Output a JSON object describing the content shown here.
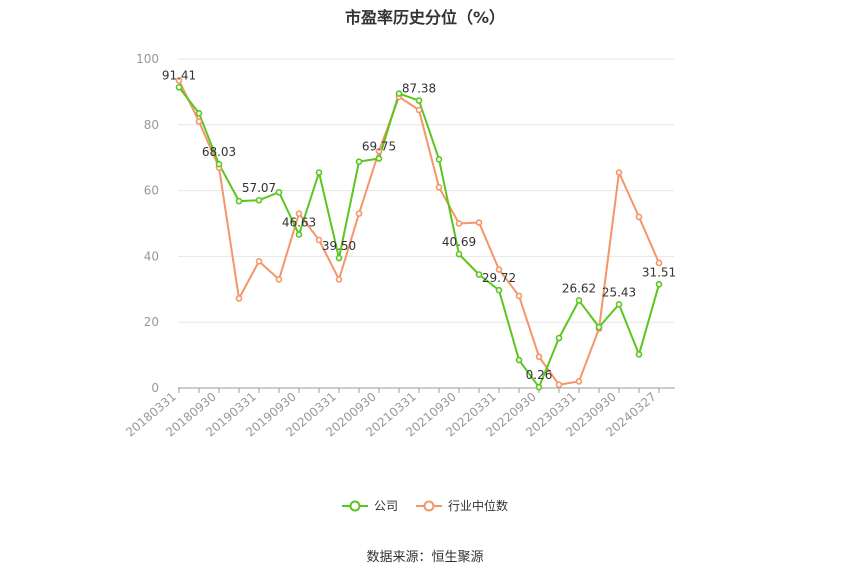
{
  "chart_data": {
    "type": "line",
    "title": "市盈率历史分位（%）",
    "source": "数据来源：恒生聚源",
    "ylim": [
      0,
      100
    ],
    "yticks": [
      0,
      20,
      40,
      60,
      80,
      100
    ],
    "grid": true,
    "legend_position": "bottom",
    "x": [
      "20180331",
      "20180630",
      "20180930",
      "20181231",
      "20190331",
      "20190630",
      "20190930",
      "20191231",
      "20200331",
      "20200630",
      "20200930",
      "20201231",
      "20210331",
      "20210630",
      "20210930",
      "20211231",
      "20220331",
      "20220630",
      "20220930",
      "20221231",
      "20230331",
      "20230630",
      "20230930",
      "20231231",
      "20240327"
    ],
    "x_tick_labels": [
      "20180331",
      "20180930",
      "20190331",
      "20190930",
      "20200331",
      "20200930",
      "20210331",
      "20210930",
      "20220331",
      "20220930",
      "20230331",
      "20230930",
      "20240327"
    ],
    "series": [
      {
        "name": "公司",
        "color": "#5ac61e",
        "values": [
          91.41,
          83.5,
          68.03,
          56.8,
          57.07,
          59.5,
          46.63,
          65.5,
          39.5,
          68.8,
          69.75,
          89.5,
          87.38,
          69.5,
          40.69,
          34.5,
          29.72,
          8.5,
          0.26,
          15.2,
          26.62,
          18.5,
          25.43,
          10.2,
          31.51
        ],
        "labels": [
          "91.41",
          "",
          "68.03",
          "",
          "57.07",
          "",
          "46.63",
          "",
          "39.50",
          "",
          "69.75",
          "",
          "87.38",
          "",
          "40.69",
          "",
          "29.72",
          "",
          "0.26",
          "",
          "26.62",
          "",
          "25.43",
          "",
          "31.51"
        ]
      },
      {
        "name": "行业中位数",
        "color": "#f4956a",
        "values": [
          93.5,
          81.0,
          67.0,
          27.2,
          38.5,
          33.0,
          53.0,
          45.0,
          33.0,
          53.0,
          72.0,
          88.5,
          84.5,
          61.0,
          50.0,
          50.3,
          36.0,
          28.0,
          9.5,
          1.0,
          2.0,
          18.0,
          65.5,
          52.0,
          38.0
        ]
      }
    ]
  }
}
